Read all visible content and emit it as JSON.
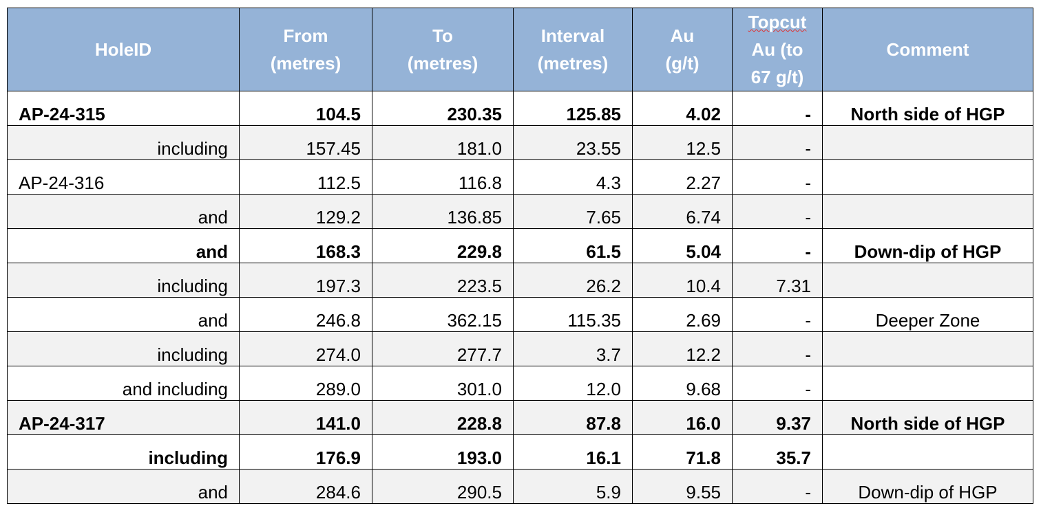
{
  "table": {
    "header": [
      [
        "HoleID"
      ],
      [
        "From",
        "(metres)"
      ],
      [
        "To",
        "(metres)"
      ],
      [
        "Interval",
        "(metres)"
      ],
      [
        "Au",
        "(g/t)"
      ],
      [
        "Topcut",
        "Au (to",
        "67 g/t)"
      ],
      [
        "Comment"
      ]
    ],
    "rows": [
      [
        "AP-24-315",
        "104.5",
        "230.35",
        "125.85",
        "4.02",
        "-",
        "North side of HGP"
      ],
      [
        "including",
        "157.45",
        "181.0",
        "23.55",
        "12.5",
        "-",
        ""
      ],
      [
        "AP-24-316",
        "112.5",
        "116.8",
        "4.3",
        "2.27",
        "-",
        ""
      ],
      [
        "and",
        "129.2",
        "136.85",
        "7.65",
        "6.74",
        "-",
        ""
      ],
      [
        "and",
        "168.3",
        "229.8",
        "61.5",
        "5.04",
        "-",
        "Down-dip of HGP"
      ],
      [
        "including",
        "197.3",
        "223.5",
        "26.2",
        "10.4",
        "7.31",
        ""
      ],
      [
        "and",
        "246.8",
        "362.15",
        "115.35",
        "2.69",
        "-",
        "Deeper Zone"
      ],
      [
        "including",
        "274.0",
        "277.7",
        "3.7",
        "12.2",
        "-",
        ""
      ],
      [
        "and including",
        "289.0",
        "301.0",
        "12.0",
        "9.68",
        "-",
        ""
      ],
      [
        "AP-24-317",
        "141.0",
        "228.8",
        "87.8",
        "16.0",
        "9.37",
        "North side of HGP"
      ],
      [
        "including",
        "176.9",
        "193.0",
        "16.1",
        "71.8",
        "35.7",
        ""
      ],
      [
        "and",
        "284.6",
        "290.5",
        "5.9",
        "9.55",
        "-",
        "Down-dip of HGP"
      ]
    ]
  }
}
